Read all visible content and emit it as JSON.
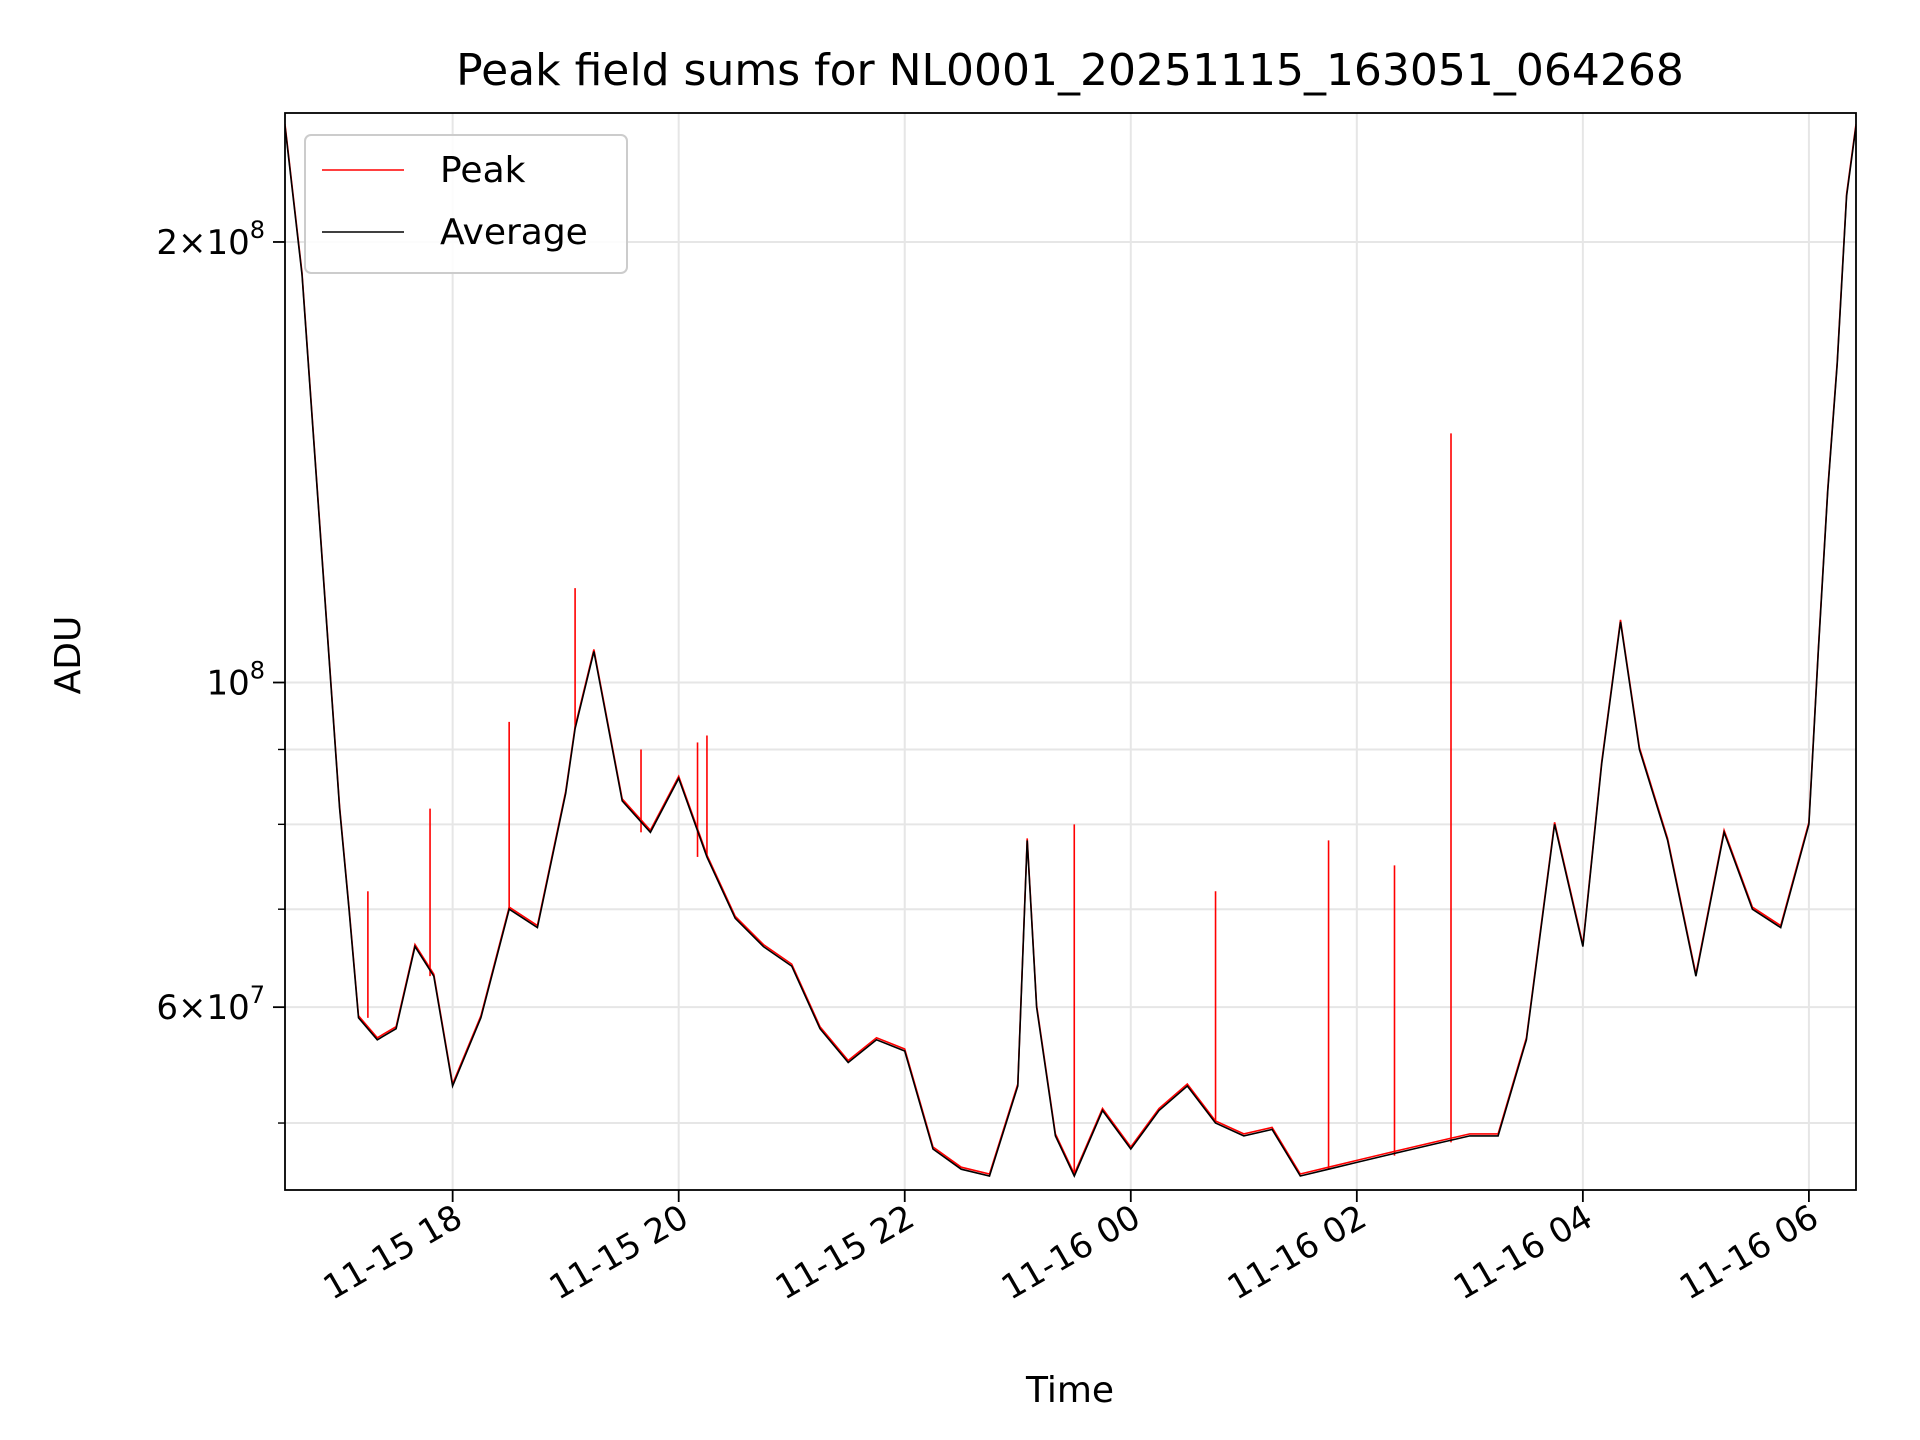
{
  "chart_data": {
    "type": "line",
    "title": "Peak field sums for NL0001_20251115_163051_064268",
    "xlabel": "Time",
    "ylabel": "ADU",
    "y_scale": "log",
    "xlim": [
      "2025-11-15T16:31",
      "2025-11-16T06:25"
    ],
    "ylim": [
      45000000,
      245000000
    ],
    "x_ticks": [
      "2025-11-15T18:00",
      "2025-11-15T20:00",
      "2025-11-15T22:00",
      "2025-11-16T00:00",
      "2025-11-16T02:00",
      "2025-11-16T04:00",
      "2025-11-16T06:00"
    ],
    "x_tick_labels": [
      "11-15 18",
      "11-15 20",
      "11-15 22",
      "11-16 00",
      "11-16 02",
      "11-16 04",
      "11-16 06"
    ],
    "x_tick_rotation": "30 degrees",
    "y_major_ticks": [
      60000000,
      100000000,
      200000000
    ],
    "y_major_tick_labels": [
      {
        "base": "6",
        "exp": "7"
      },
      {
        "base": "",
        "exp": "8"
      },
      {
        "base": "2",
        "exp": "8"
      }
    ],
    "y_minor_ticks": [
      50000000,
      70000000,
      80000000,
      90000000
    ],
    "grid": true,
    "legend": {
      "placement": "top-left",
      "entries": [
        "Peak",
        "Average"
      ]
    },
    "colors": {
      "Peak": "#ff0000",
      "Average": "#000000"
    },
    "series": [
      {
        "name": "Average",
        "x": [
          "2025-11-15T16:31",
          "2025-11-15T16:40",
          "2025-11-15T16:50",
          "2025-11-15T17:00",
          "2025-11-15T17:05",
          "2025-11-15T17:10",
          "2025-11-15T17:20",
          "2025-11-15T17:30",
          "2025-11-15T17:40",
          "2025-11-15T17:50",
          "2025-11-15T18:00",
          "2025-11-15T18:15",
          "2025-11-15T18:30",
          "2025-11-15T18:45",
          "2025-11-15T19:00",
          "2025-11-15T19:05",
          "2025-11-15T19:15",
          "2025-11-15T19:30",
          "2025-11-15T19:45",
          "2025-11-15T20:00",
          "2025-11-15T20:15",
          "2025-11-15T20:30",
          "2025-11-15T20:45",
          "2025-11-15T21:00",
          "2025-11-15T21:15",
          "2025-11-15T21:30",
          "2025-11-15T21:45",
          "2025-11-15T22:00",
          "2025-11-15T22:15",
          "2025-11-15T22:30",
          "2025-11-15T22:45",
          "2025-11-15T23:00",
          "2025-11-15T23:05",
          "2025-11-15T23:10",
          "2025-11-15T23:20",
          "2025-11-15T23:30",
          "2025-11-15T23:45",
          "2025-11-16T00:00",
          "2025-11-16T00:15",
          "2025-11-16T00:30",
          "2025-11-16T00:45",
          "2025-11-16T01:00",
          "2025-11-16T01:15",
          "2025-11-16T01:30",
          "2025-11-16T01:45",
          "2025-11-16T02:00",
          "2025-11-16T02:15",
          "2025-11-16T02:30",
          "2025-11-16T02:45",
          "2025-11-16T03:00",
          "2025-11-16T03:15",
          "2025-11-16T03:30",
          "2025-11-16T03:45",
          "2025-11-16T04:00",
          "2025-11-16T04:10",
          "2025-11-16T04:20",
          "2025-11-16T04:30",
          "2025-11-16T04:45",
          "2025-11-16T05:00",
          "2025-11-16T05:15",
          "2025-11-16T05:30",
          "2025-11-16T05:45",
          "2025-11-16T06:00",
          "2025-11-16T06:05",
          "2025-11-16T06:10",
          "2025-11-16T06:15",
          "2025-11-16T06:20",
          "2025-11-16T06:25"
        ],
        "values": [
          240000000,
          190000000,
          125000000,
          82000000,
          70000000,
          59000000,
          57000000,
          58000000,
          66000000,
          63000000,
          53000000,
          59000000,
          70000000,
          68000000,
          84000000,
          93000000,
          105000000,
          83000000,
          79000000,
          86000000,
          76000000,
          69000000,
          66000000,
          64000000,
          58000000,
          55000000,
          57000000,
          56000000,
          48000000,
          46500000,
          46000000,
          53000000,
          78000000,
          60000000,
          49000000,
          46000000,
          51000000,
          48000000,
          51000000,
          53000000,
          50000000,
          49000000,
          49500000,
          46000000,
          46500000,
          47000000,
          47500000,
          48000000,
          48500000,
          49000000,
          49000000,
          57000000,
          80000000,
          66000000,
          88000000,
          110000000,
          90000000,
          78000000,
          63000000,
          79000000,
          70000000,
          68000000,
          80000000,
          105000000,
          135000000,
          165000000,
          215000000,
          240000000
        ]
      },
      {
        "name": "Peak",
        "x": [
          "2025-11-15T17:15",
          "2025-11-15T17:48",
          "2025-11-15T18:30",
          "2025-11-15T19:05",
          "2025-11-15T19:40",
          "2025-11-15T20:10",
          "2025-11-15T20:15",
          "2025-11-15T23:30",
          "2025-11-15T23:05",
          "2025-11-16T00:45",
          "2025-11-16T01:45",
          "2025-11-16T02:20",
          "2025-11-16T02:50"
        ],
        "values": [
          72000000,
          82000000,
          94000000,
          116000000,
          90000000,
          91000000,
          92000000,
          80000000,
          78000000,
          72000000,
          78000000,
          75000000,
          148000000
        ]
      }
    ]
  }
}
